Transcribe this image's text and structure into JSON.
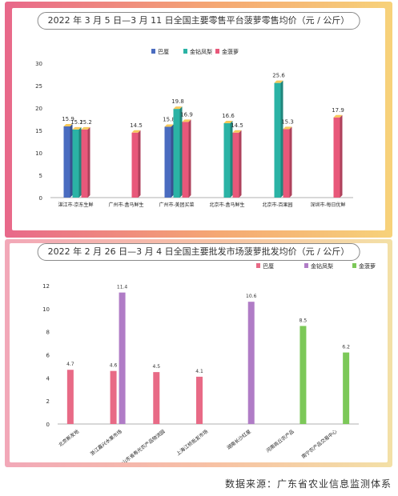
{
  "chart_data": [
    {
      "type": "bar",
      "title": "2022 年 3 月 5 日—3 月 11 日全国主要零售平台菠萝零售均价（元 / 公斤）",
      "categories": [
        "湛江市-京东生鲜",
        "广州市-盒马鲜生",
        "广州市-美团买菜",
        "北京市-盒马鲜生",
        "北京市-百果园",
        "深圳市-每日优鲜"
      ],
      "series": [
        {
          "name": "巴厘",
          "color": "#4a6cc0",
          "values": [
            15.9,
            null,
            15.8,
            null,
            null,
            null
          ]
        },
        {
          "name": "金钻凤梨",
          "color": "#2bb3a5",
          "values": [
            15.2,
            null,
            19.8,
            16.6,
            25.6,
            null
          ]
        },
        {
          "name": "金菠萝",
          "color": "#e8587a",
          "values": [
            15.2,
            14.5,
            16.9,
            14.5,
            15.3,
            17.9
          ]
        }
      ],
      "ylim": [
        0,
        30
      ],
      "yticks": [
        0,
        5,
        10,
        15,
        20,
        25,
        30
      ],
      "legend": "top-center"
    },
    {
      "type": "bar",
      "title": "2022 年 2 月 26 日—3 月 4 日全国主要批发市场菠萝批发均价（元 / 公斤）",
      "categories": [
        "北京新发地",
        "浙江嘉兴水果市场",
        "山东省寿光农产品物流园",
        "上海江桥批发市场",
        "湖南长沙红星",
        "河南商丘农产品",
        "南宁农产品交易中心"
      ],
      "series": [
        {
          "name": "巴厘",
          "color": "#e86a86",
          "values": [
            4.7,
            4.6,
            4.5,
            4.1,
            null,
            null,
            null
          ]
        },
        {
          "name": "金钻凤梨",
          "color": "#b07cc6",
          "values": [
            null,
            11.4,
            null,
            null,
            10.6,
            null,
            null
          ]
        },
        {
          "name": "金菠萝",
          "color": "#7cc858",
          "values": [
            null,
            null,
            null,
            null,
            null,
            8.5,
            6.2
          ]
        }
      ],
      "ylim": [
        0,
        12
      ],
      "yticks": [
        0,
        2,
        4,
        6,
        8,
        10,
        12
      ],
      "legend": "top-right"
    }
  ],
  "source": "数据来源：广东省农业信息监测体系"
}
